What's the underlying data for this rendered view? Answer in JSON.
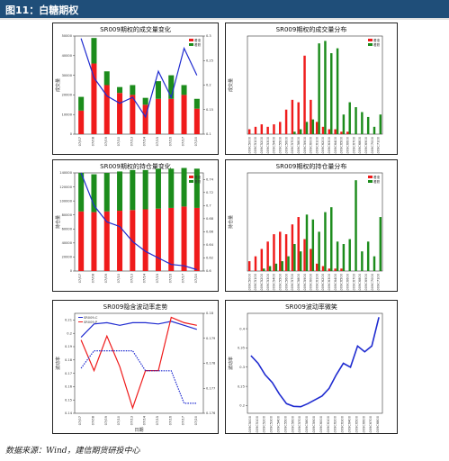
{
  "figure_label": "图11：白糖期权",
  "source": "数据来源：Wind，建信期货研投中心",
  "colors": {
    "red": "#ef1b1b",
    "green": "#1c8c1c",
    "blue": "#1f2bd0",
    "header": "#1f4e79"
  },
  "chart_data": [
    {
      "id": "vol",
      "type": "bar",
      "title": "SR009期权的成交量变化",
      "ylabel": "成交量",
      "ylim": [
        0,
        50000
      ],
      "y2lim": [
        0.1,
        0.3
      ],
      "yticks": [
        "0",
        "10000",
        "20000",
        "30000",
        "40000",
        "50000"
      ],
      "y2ticks": [
        "0.1",
        "0.15",
        "0.2",
        "0.25",
        "0.3"
      ],
      "categories": [
        "07/07",
        "07/08",
        "07/09",
        "07/10",
        "07/13",
        "07/14",
        "07/15",
        "07/16",
        "07/17",
        "07/20"
      ],
      "series": [
        {
          "name": "看涨",
          "stack": true,
          "values": [
            12000,
            36000,
            25000,
            21000,
            20000,
            15000,
            18000,
            18000,
            20000,
            13000
          ]
        },
        {
          "name": "看跌",
          "stack": true,
          "values": [
            7000,
            13000,
            7000,
            3000,
            5000,
            3500,
            9000,
            12000,
            5000,
            5000
          ]
        },
        {
          "name": "",
          "axis": "right",
          "values": [
            0.295,
            0.215,
            0.178,
            0.163,
            0.175,
            0.135,
            0.228,
            0.175,
            0.275,
            0.22
          ]
        }
      ],
      "legend_placement": "top-right"
    },
    {
      "id": "voldist",
      "type": "bar",
      "title": "SR009期权的成交量分布",
      "ylabel": "成交量",
      "ylim": [
        0,
        40
      ],
      "categories": [
        "SR009C5000",
        "SR009C5100",
        "SR009C5200",
        "SR009C5300",
        "SR009C5400",
        "SR009C5500",
        "SR009C5600",
        "SR009C5700",
        "SR009C5800",
        "SR009C5900",
        "SR009C6000",
        "SR009C6100",
        "SR009C6200",
        "SR009C6300",
        "SR009C6400",
        "SR009C6500",
        "SR009C6600",
        "SR009C6700",
        "SR009C6800",
        "SR009C6900",
        "SR009C7000",
        "SR009C7100"
      ],
      "series": [
        {
          "name": "看涨",
          "values": [
            2,
            3,
            4,
            3,
            4,
            5,
            10,
            14,
            13,
            32,
            14,
            5,
            3,
            2,
            2,
            1,
            1,
            0,
            0,
            0,
            0,
            0
          ]
        },
        {
          "name": "看跌",
          "values": [
            0,
            0,
            0,
            0,
            0,
            0,
            0,
            1,
            2,
            5,
            6,
            37,
            38,
            33,
            35,
            8,
            13,
            11,
            9,
            7,
            3,
            8
          ]
        }
      ],
      "legend_placement": "top-right"
    },
    {
      "id": "oi",
      "type": "bar",
      "title": "SR009期权的持仓量变化",
      "ylabel": "持仓量",
      "ylim": [
        0,
        140000
      ],
      "y2lim": [
        0.6,
        0.75
      ],
      "yticks": [
        "0",
        "20000",
        "40000",
        "60000",
        "80000",
        "100000",
        "120000",
        "140000"
      ],
      "y2ticks": [
        "0.6",
        "0.62",
        "0.64",
        "0.66",
        "0.68",
        "0.7",
        "0.72",
        "0.74"
      ],
      "categories": [
        "07/07",
        "07/08",
        "07/09",
        "07/10",
        "07/13",
        "07/14",
        "07/15",
        "07/16",
        "07/17",
        "07/20"
      ],
      "series": [
        {
          "name": "看涨",
          "stack": true,
          "values": [
            85000,
            84000,
            85000,
            86000,
            87000,
            88000,
            89000,
            90000,
            92000,
            90000
          ]
        },
        {
          "name": "看跌",
          "stack": true,
          "values": [
            55000,
            54000,
            55000,
            56000,
            57000,
            56000,
            57000,
            56000,
            55000,
            56000
          ]
        },
        {
          "name": "",
          "axis": "right",
          "values": [
            0.75,
            0.7,
            0.675,
            0.668,
            0.645,
            0.63,
            0.62,
            0.61,
            0.608,
            0.602
          ]
        }
      ],
      "legend_placement": "top-right"
    },
    {
      "id": "oidist",
      "type": "bar",
      "title": "SR009期权的持仓量分布",
      "ylabel": "持仓量",
      "ylim": [
        0,
        40
      ],
      "categories": [
        "SR009C5000",
        "SR009C5100",
        "SR009C5200",
        "SR009C5300",
        "SR009C5400",
        "SR009C5500",
        "SR009C5600",
        "SR009C5700",
        "SR009C5800",
        "SR009C5900",
        "SR009C6000",
        "SR009C6100",
        "SR009C6200",
        "SR009C6300",
        "SR009C6400",
        "SR009C6500",
        "SR009C6600",
        "SR009C6700",
        "SR009C6800",
        "SR009C6900",
        "SR009C7000",
        "SR009C7100"
      ],
      "series": [
        {
          "name": "看涨",
          "values": [
            4,
            6,
            9,
            12,
            15,
            16,
            15,
            19,
            22,
            13,
            9,
            3,
            2,
            1,
            1,
            1,
            0,
            0,
            0,
            0,
            0,
            0
          ]
        },
        {
          "name": "看跌",
          "values": [
            0,
            0,
            1,
            2,
            3,
            4,
            6,
            11,
            8,
            23,
            21,
            16,
            24,
            26,
            12,
            11,
            13,
            37,
            8,
            12,
            6,
            22
          ]
        }
      ],
      "legend_placement": "top-right"
    },
    {
      "id": "iv",
      "type": "line",
      "title": "SR009隐含波动率走势",
      "ylabel": "波动率",
      "xlabel": "日期",
      "ylim": [
        0.14,
        0.215
      ],
      "y2lim": [
        0.176,
        0.18
      ],
      "yticks": [
        "0.14",
        "0.15",
        "0.16",
        "0.17",
        "0.18",
        "0.19",
        "0.2",
        "0.21"
      ],
      "y2ticks": [
        "0.176",
        "0.177",
        "0.178",
        "0.179",
        "0.18"
      ],
      "categories": [
        "07/07",
        "07/08",
        "07/09",
        "07/10",
        "07/13",
        "07/14",
        "07/15",
        "07/16",
        "07/17",
        "07/20"
      ],
      "series": [
        {
          "name": "SR009-C",
          "color": "blue",
          "values": [
            0.197,
            0.207,
            0.208,
            0.206,
            0.208,
            0.208,
            0.207,
            0.209,
            0.206,
            0.203
          ]
        },
        {
          "name": "SR009-P",
          "color": "red",
          "values": [
            0.195,
            0.172,
            0.198,
            0.175,
            0.144,
            0.172,
            0.172,
            0.212,
            0.208,
            0.206
          ]
        },
        {
          "name": "",
          "color": "blue",
          "dashed": true,
          "axis": "right",
          "values": [
            0.1778,
            0.1785,
            0.1785,
            0.1785,
            0.1785,
            0.1777,
            0.1777,
            0.1777,
            0.1764,
            0.1764
          ]
        }
      ],
      "legend_placement": "top-left"
    },
    {
      "id": "smile",
      "type": "line",
      "title": "SR009波动率微笑",
      "ylabel": "波动率",
      "ylim": [
        0.18,
        0.44
      ],
      "yticks": [
        "0.2",
        "0.25",
        "0.3",
        "0.35",
        "0.4"
      ],
      "categories": [
        "SR009C5000",
        "SR009C5100",
        "SR009C5200",
        "SR009C5300",
        "SR009C5400",
        "SR009C5500",
        "SR009C5600",
        "SR009C5700",
        "SR009C5800",
        "SR009C5900",
        "SR009C6000",
        "SR009C6100",
        "SR009C6200",
        "SR009C6300",
        "SR009C6400",
        "SR009C6500",
        "SR009C6600",
        "SR009C6700",
        "SR009C6800"
      ],
      "series": [
        {
          "name": "",
          "color": "blue",
          "values": [
            0.33,
            0.31,
            0.28,
            0.26,
            0.23,
            0.205,
            0.198,
            0.197,
            0.205,
            0.215,
            0.225,
            0.245,
            0.28,
            0.31,
            0.3,
            0.355,
            0.34,
            0.355,
            0.43
          ]
        }
      ]
    }
  ]
}
